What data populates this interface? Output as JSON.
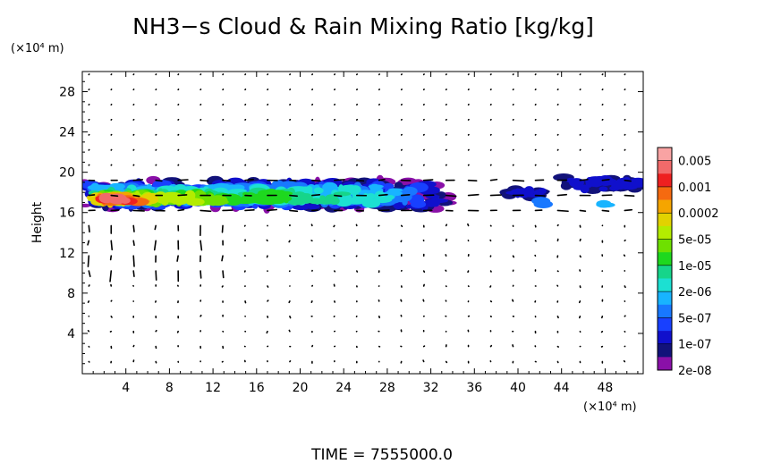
{
  "chart_data": {
    "type": "heatmap",
    "title": "NH3−s Cloud & Rain Mixing Ratio [kg/kg]",
    "ylabel": "Height",
    "y_unit": "(×10⁴ m)",
    "x_unit": "(×10⁴ m)",
    "x_ticks": [
      "4",
      "8",
      "12",
      "16",
      "20",
      "24",
      "28",
      "32",
      "36",
      "40",
      "44",
      "48"
    ],
    "y_ticks": [
      "4",
      "8",
      "12",
      "16",
      "20",
      "24",
      "28"
    ],
    "xlim": [
      0,
      51.5
    ],
    "ylim": [
      0,
      30
    ],
    "time_label": "TIME = 7555000.0",
    "colorbar": {
      "labels": [
        "0.005",
        "0.001",
        "0.0002",
        "5e-05",
        "1e-05",
        "2e-06",
        "5e-07",
        "1e-07",
        "2e-08"
      ],
      "colors": [
        "#f9a3a3",
        "#f26a6a",
        "#ee2020",
        "#f56a10",
        "#f5a500",
        "#e2d200",
        "#b4ec00",
        "#6ee000",
        "#1ed81e",
        "#16d58a",
        "#1ce0d2",
        "#18b4ff",
        "#1878ff",
        "#1840ff",
        "#1010cc",
        "#12127a",
        "#8a10a8"
      ]
    },
    "cloud_layer": {
      "y_range": [
        15.8,
        19.8
      ],
      "segments": [
        {
          "x": [
            0.5,
            34.0
          ],
          "level": "1e-05 to 5e-07",
          "peak_level": "0.001",
          "peak_x": [
            1.5,
            5.5
          ],
          "peak_y": [
            16.5,
            18.0
          ]
        },
        {
          "x": [
            39.0,
            42.5
          ],
          "level": "1e-07"
        },
        {
          "x": [
            44.0,
            51.5
          ],
          "level": "1e-07 to 2e-08"
        }
      ]
    }
  }
}
